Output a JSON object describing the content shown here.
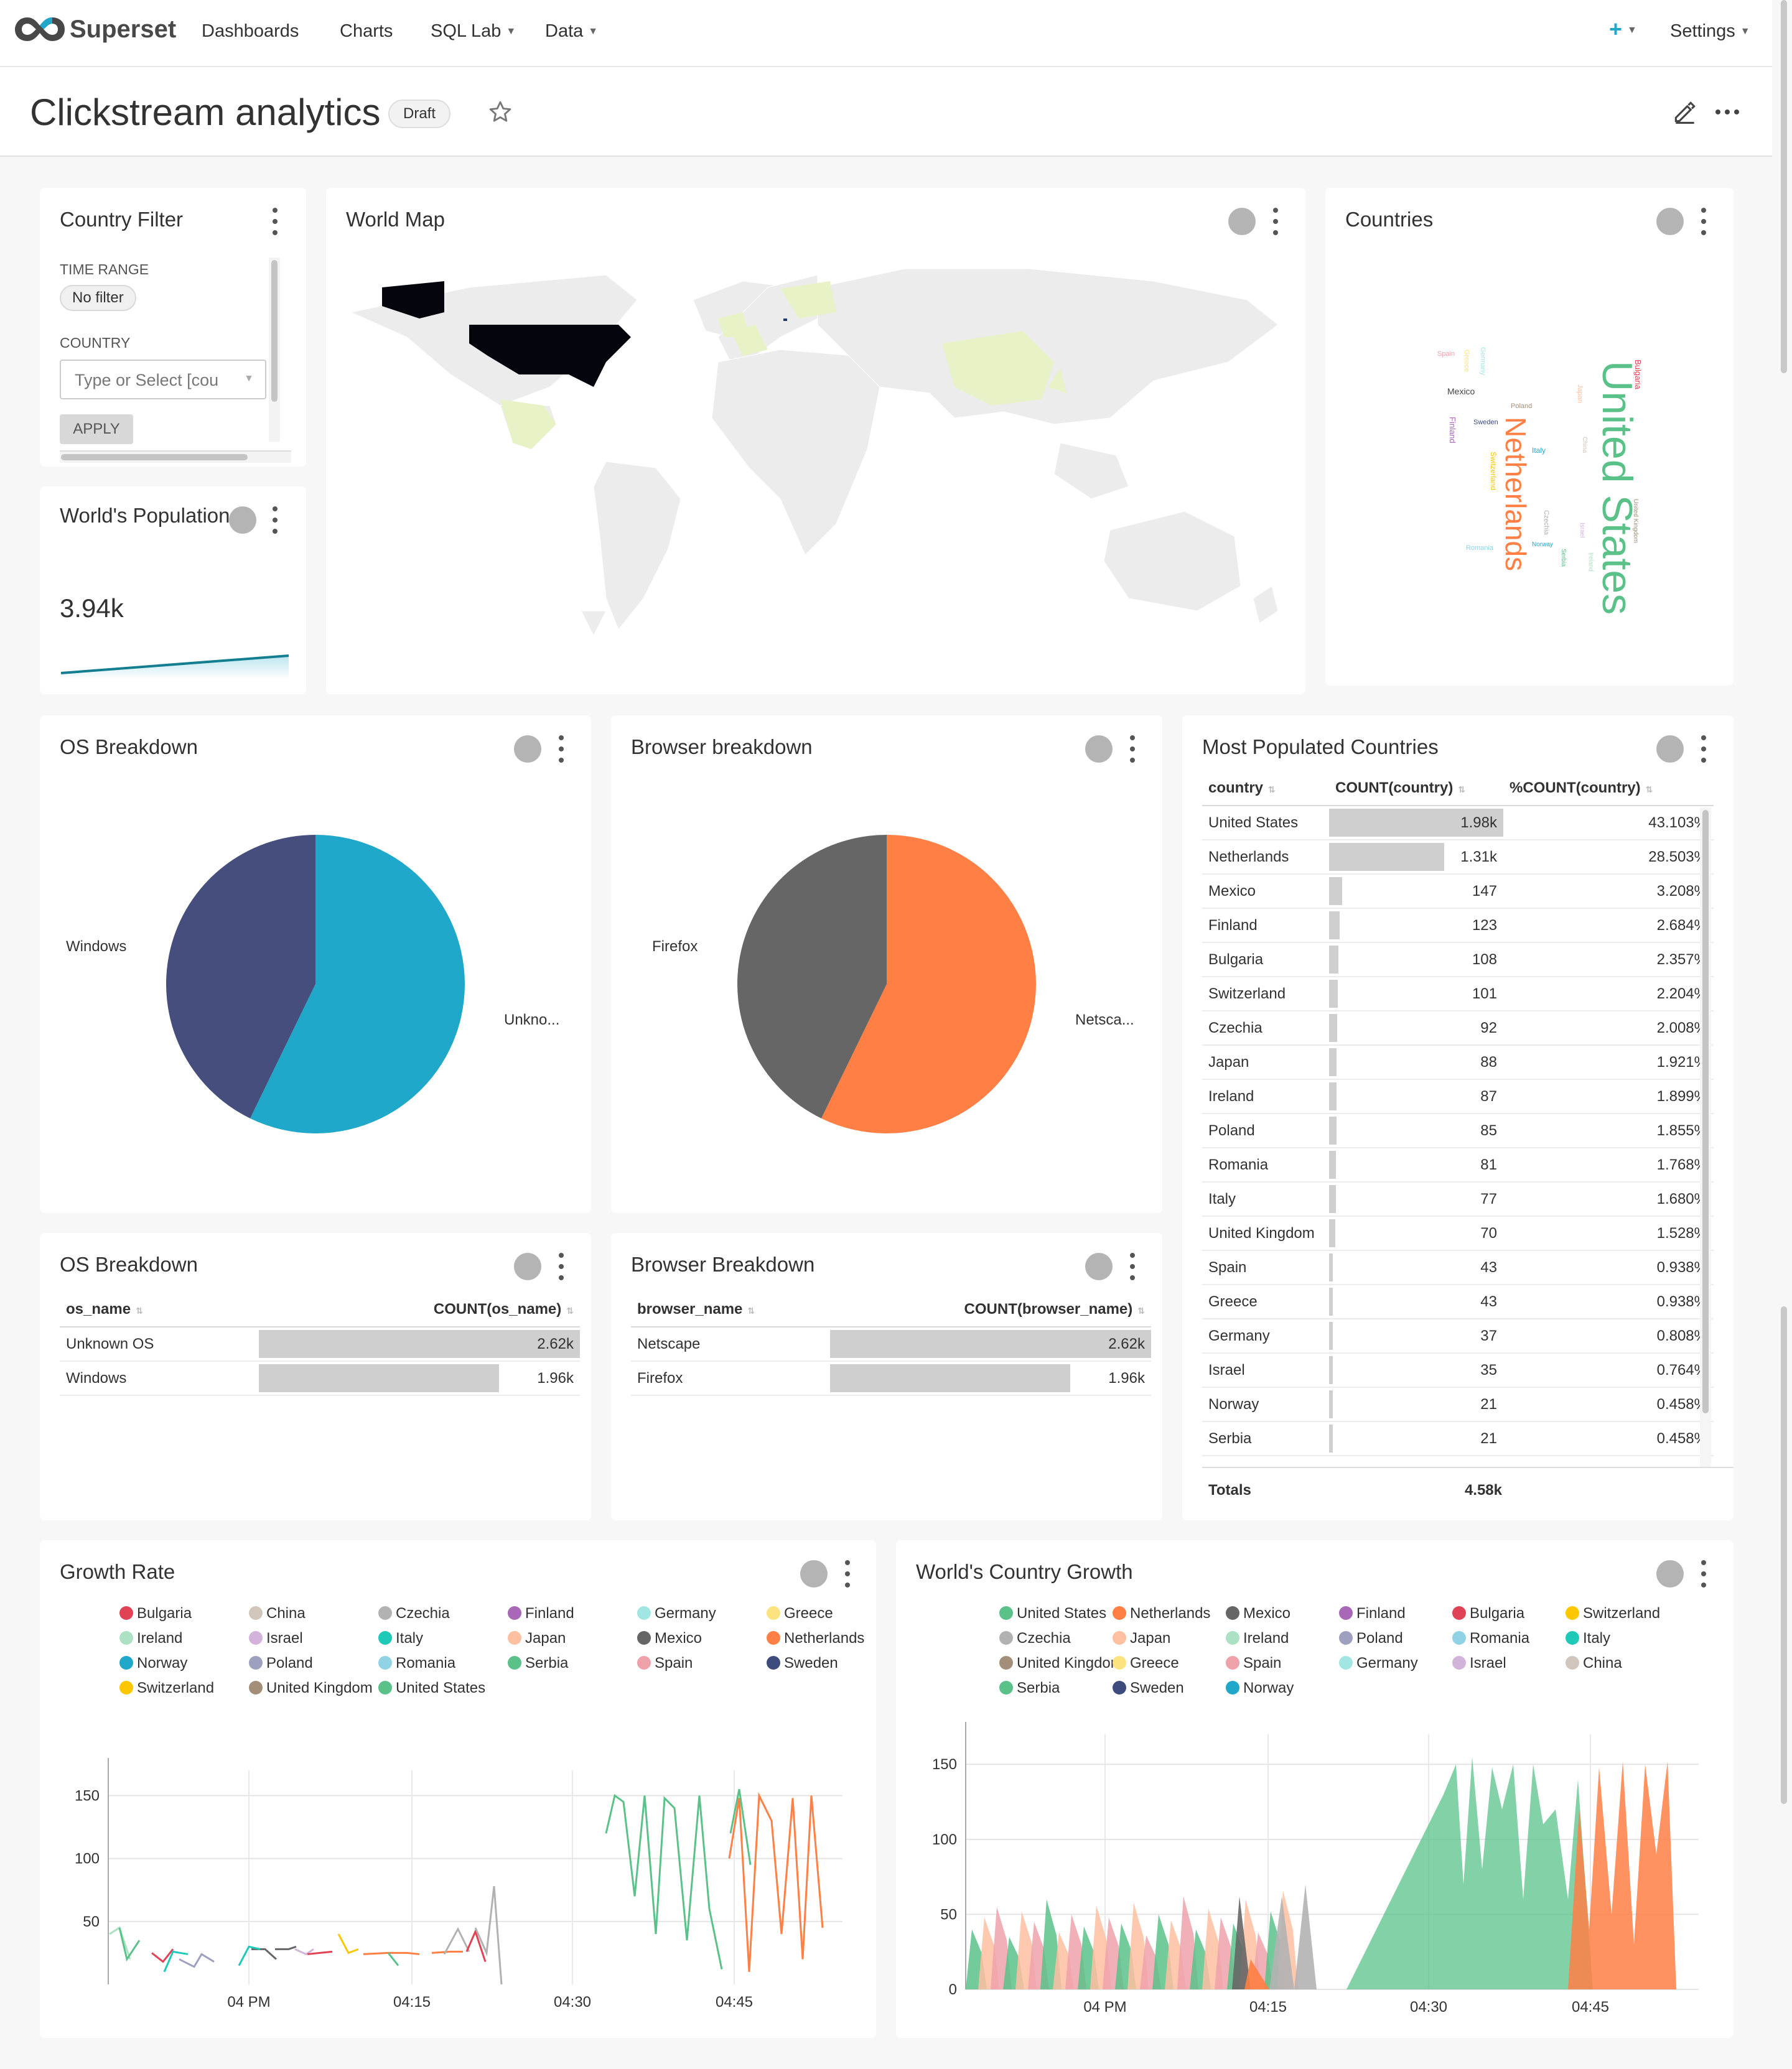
{
  "nav": {
    "brand": "Superset",
    "dashboards": "Dashboards",
    "charts": "Charts",
    "sqllab": "SQL Lab",
    "data": "Data",
    "plus": "+",
    "settings": "Settings"
  },
  "header": {
    "title": "Clickstream analytics",
    "badge": "Draft"
  },
  "filter": {
    "title": "Country Filter",
    "time_label": "TIME RANGE",
    "time_value": "No filter",
    "country_label": "COUNTRY",
    "country_placeholder": "Type or Select [cou",
    "apply": "APPLY"
  },
  "population": {
    "title": "World's Population",
    "value": "3.94k"
  },
  "worldmap": {
    "title": "World Map"
  },
  "countries": {
    "title": "Countries",
    "words": [
      {
        "text": "United States",
        "color": "#5AC189"
      },
      {
        "text": "Netherlands",
        "color": "#FF7F44"
      },
      {
        "text": "Bulgaria",
        "color": "#E04355"
      },
      {
        "text": "Mexico",
        "color": "#666666"
      },
      {
        "text": "Spain",
        "color": "#EFA1AA"
      },
      {
        "text": "Germany",
        "color": "#A1E6E3"
      },
      {
        "text": "Greece",
        "color": "#FDE380"
      },
      {
        "text": "Poland",
        "color": "#A38F79"
      },
      {
        "text": "Finland",
        "color": "#A868B7"
      },
      {
        "text": "Sweden",
        "color": "#3D4C7C"
      },
      {
        "text": "Japan",
        "color": "#FEC0A1"
      },
      {
        "text": "Italy",
        "color": "#1FA8C9"
      },
      {
        "text": "Switzerland",
        "color": "#FCC700"
      },
      {
        "text": "Czechia",
        "color": "#B2B2B2"
      },
      {
        "text": "Israel",
        "color": "#D3B3DA"
      },
      {
        "text": "Romania",
        "color": "#8FD3E4"
      },
      {
        "text": "Norway",
        "color": "#1FA8C9"
      },
      {
        "text": "Serbia",
        "color": "#5AC189"
      },
      {
        "text": "Ireland",
        "color": "#ACE1C4"
      },
      {
        "text": "China",
        "color": "#D1C6BC"
      },
      {
        "text": "United Kingdom",
        "color": "#A38F79"
      }
    ]
  },
  "os_pie": {
    "title": "OS Breakdown",
    "label_a": "Windows",
    "label_b": "Unkno..."
  },
  "br_pie": {
    "title": "Browser breakdown",
    "label_a": "Firefox",
    "label_b": "Netsca..."
  },
  "os_tbl": {
    "title": "OS Breakdown",
    "col1": "os_name",
    "col2": "COUNT(os_name)",
    "rows": [
      {
        "name": "Unknown OS",
        "value": "2.62k"
      },
      {
        "name": "Windows",
        "value": "1.96k"
      }
    ]
  },
  "br_tbl": {
    "title": "Browser Breakdown",
    "col1": "browser_name",
    "col2": "COUNT(browser_name)",
    "rows": [
      {
        "name": "Netscape",
        "value": "2.62k"
      },
      {
        "name": "Firefox",
        "value": "1.96k"
      }
    ]
  },
  "pop_tbl": {
    "title": "Most Populated Countries",
    "col1": "country",
    "col2": "COUNT(country)",
    "col3": "%COUNT(country)",
    "totals_label": "Totals",
    "totals_value": "4.58k",
    "rows": [
      {
        "country": "United States",
        "count": "1.98k",
        "pct": "43.103%",
        "n": 1980
      },
      {
        "country": "Netherlands",
        "count": "1.31k",
        "pct": "28.503%",
        "n": 1310
      },
      {
        "country": "Mexico",
        "count": "147",
        "pct": "3.208%",
        "n": 147
      },
      {
        "country": "Finland",
        "count": "123",
        "pct": "2.684%",
        "n": 123
      },
      {
        "country": "Bulgaria",
        "count": "108",
        "pct": "2.357%",
        "n": 108
      },
      {
        "country": "Switzerland",
        "count": "101",
        "pct": "2.204%",
        "n": 101
      },
      {
        "country": "Czechia",
        "count": "92",
        "pct": "2.008%",
        "n": 92
      },
      {
        "country": "Japan",
        "count": "88",
        "pct": "1.921%",
        "n": 88
      },
      {
        "country": "Ireland",
        "count": "87",
        "pct": "1.899%",
        "n": 87
      },
      {
        "country": "Poland",
        "count": "85",
        "pct": "1.855%",
        "n": 85
      },
      {
        "country": "Romania",
        "count": "81",
        "pct": "1.768%",
        "n": 81
      },
      {
        "country": "Italy",
        "count": "77",
        "pct": "1.680%",
        "n": 77
      },
      {
        "country": "United Kingdom",
        "count": "70",
        "pct": "1.528%",
        "n": 70
      },
      {
        "country": "Spain",
        "count": "43",
        "pct": "0.938%",
        "n": 43
      },
      {
        "country": "Greece",
        "count": "43",
        "pct": "0.938%",
        "n": 43
      },
      {
        "country": "Germany",
        "count": "37",
        "pct": "0.808%",
        "n": 37
      },
      {
        "country": "Israel",
        "count": "35",
        "pct": "0.764%",
        "n": 35
      },
      {
        "country": "Norway",
        "count": "21",
        "pct": "0.458%",
        "n": 21
      },
      {
        "country": "Serbia",
        "count": "21",
        "pct": "0.458%",
        "n": 21
      }
    ]
  },
  "growth": {
    "title": "Growth Rate",
    "legend": [
      {
        "name": "Bulgaria",
        "color": "#E04355"
      },
      {
        "name": "China",
        "color": "#D1C6BC"
      },
      {
        "name": "Czechia",
        "color": "#B2B2B2"
      },
      {
        "name": "Finland",
        "color": "#A868B7"
      },
      {
        "name": "Germany",
        "color": "#A1E6E3"
      },
      {
        "name": "Greece",
        "color": "#FDE380"
      },
      {
        "name": "Ireland",
        "color": "#ACE1C4"
      },
      {
        "name": "Israel",
        "color": "#D3B3DA"
      },
      {
        "name": "Italy",
        "color": "#1FC9B8"
      },
      {
        "name": "Japan",
        "color": "#FEC0A1"
      },
      {
        "name": "Mexico",
        "color": "#666666"
      },
      {
        "name": "Netherlands",
        "color": "#FF7F44"
      },
      {
        "name": "Norway",
        "color": "#1FA8C9"
      },
      {
        "name": "Poland",
        "color": "#9EA0BF"
      },
      {
        "name": "Romania",
        "color": "#8FD3E4"
      },
      {
        "name": "Serbia",
        "color": "#5AC189"
      },
      {
        "name": "Spain",
        "color": "#EFA1AA"
      },
      {
        "name": "Sweden",
        "color": "#3D4C7C"
      },
      {
        "name": "Switzerland",
        "color": "#FCC700"
      },
      {
        "name": "United Kingdom",
        "color": "#A38F79"
      },
      {
        "name": "United States",
        "color": "#5AC189"
      }
    ]
  },
  "cgrowth": {
    "title": "World's Country Growth",
    "legend": [
      {
        "name": "United States",
        "color": "#5AC189"
      },
      {
        "name": "Netherlands",
        "color": "#FF7F44"
      },
      {
        "name": "Mexico",
        "color": "#666666"
      },
      {
        "name": "Finland",
        "color": "#A868B7"
      },
      {
        "name": "Bulgaria",
        "color": "#E04355"
      },
      {
        "name": "Switzerland",
        "color": "#FCC700"
      },
      {
        "name": "Czechia",
        "color": "#B2B2B2"
      },
      {
        "name": "Japan",
        "color": "#FEC0A1"
      },
      {
        "name": "Ireland",
        "color": "#ACE1C4"
      },
      {
        "name": "Poland",
        "color": "#9EA0BF"
      },
      {
        "name": "Romania",
        "color": "#8FD3E4"
      },
      {
        "name": "Italy",
        "color": "#1FC9B8"
      },
      {
        "name": "United Kingdom",
        "color": "#A38F79"
      },
      {
        "name": "Greece",
        "color": "#FDE380"
      },
      {
        "name": "Spain",
        "color": "#EFA1AA"
      },
      {
        "name": "Germany",
        "color": "#A1E6E3"
      },
      {
        "name": "Israel",
        "color": "#D3B3DA"
      },
      {
        "name": "China",
        "color": "#D1C6BC"
      },
      {
        "name": "Serbia",
        "color": "#5AC189"
      },
      {
        "name": "Sweden",
        "color": "#3D4C7C"
      },
      {
        "name": "Norway",
        "color": "#1FA8C9"
      }
    ]
  },
  "chart_data": [
    {
      "type": "pie",
      "title": "OS Breakdown",
      "categories": [
        "Unknown OS",
        "Windows"
      ],
      "values": [
        2620,
        1960
      ],
      "colors": [
        "#1FA8C9",
        "#454E7C"
      ]
    },
    {
      "type": "pie",
      "title": "Browser breakdown",
      "categories": [
        "Netscape",
        "Firefox"
      ],
      "values": [
        2620,
        1960
      ],
      "colors": [
        "#FF7F44",
        "#666666"
      ]
    },
    {
      "type": "line",
      "title": "Growth Rate",
      "yticks": [
        50,
        100,
        150
      ],
      "xticks": [
        "04 PM",
        "04:15",
        "04:30",
        "04:45"
      ],
      "ylim": [
        0,
        170
      ]
    },
    {
      "type": "area",
      "title": "World's Country Growth",
      "yticks": [
        0,
        50,
        100,
        150
      ],
      "xticks": [
        "04 PM",
        "04:15",
        "04:30",
        "04:45"
      ],
      "ylim": [
        0,
        170
      ]
    }
  ]
}
